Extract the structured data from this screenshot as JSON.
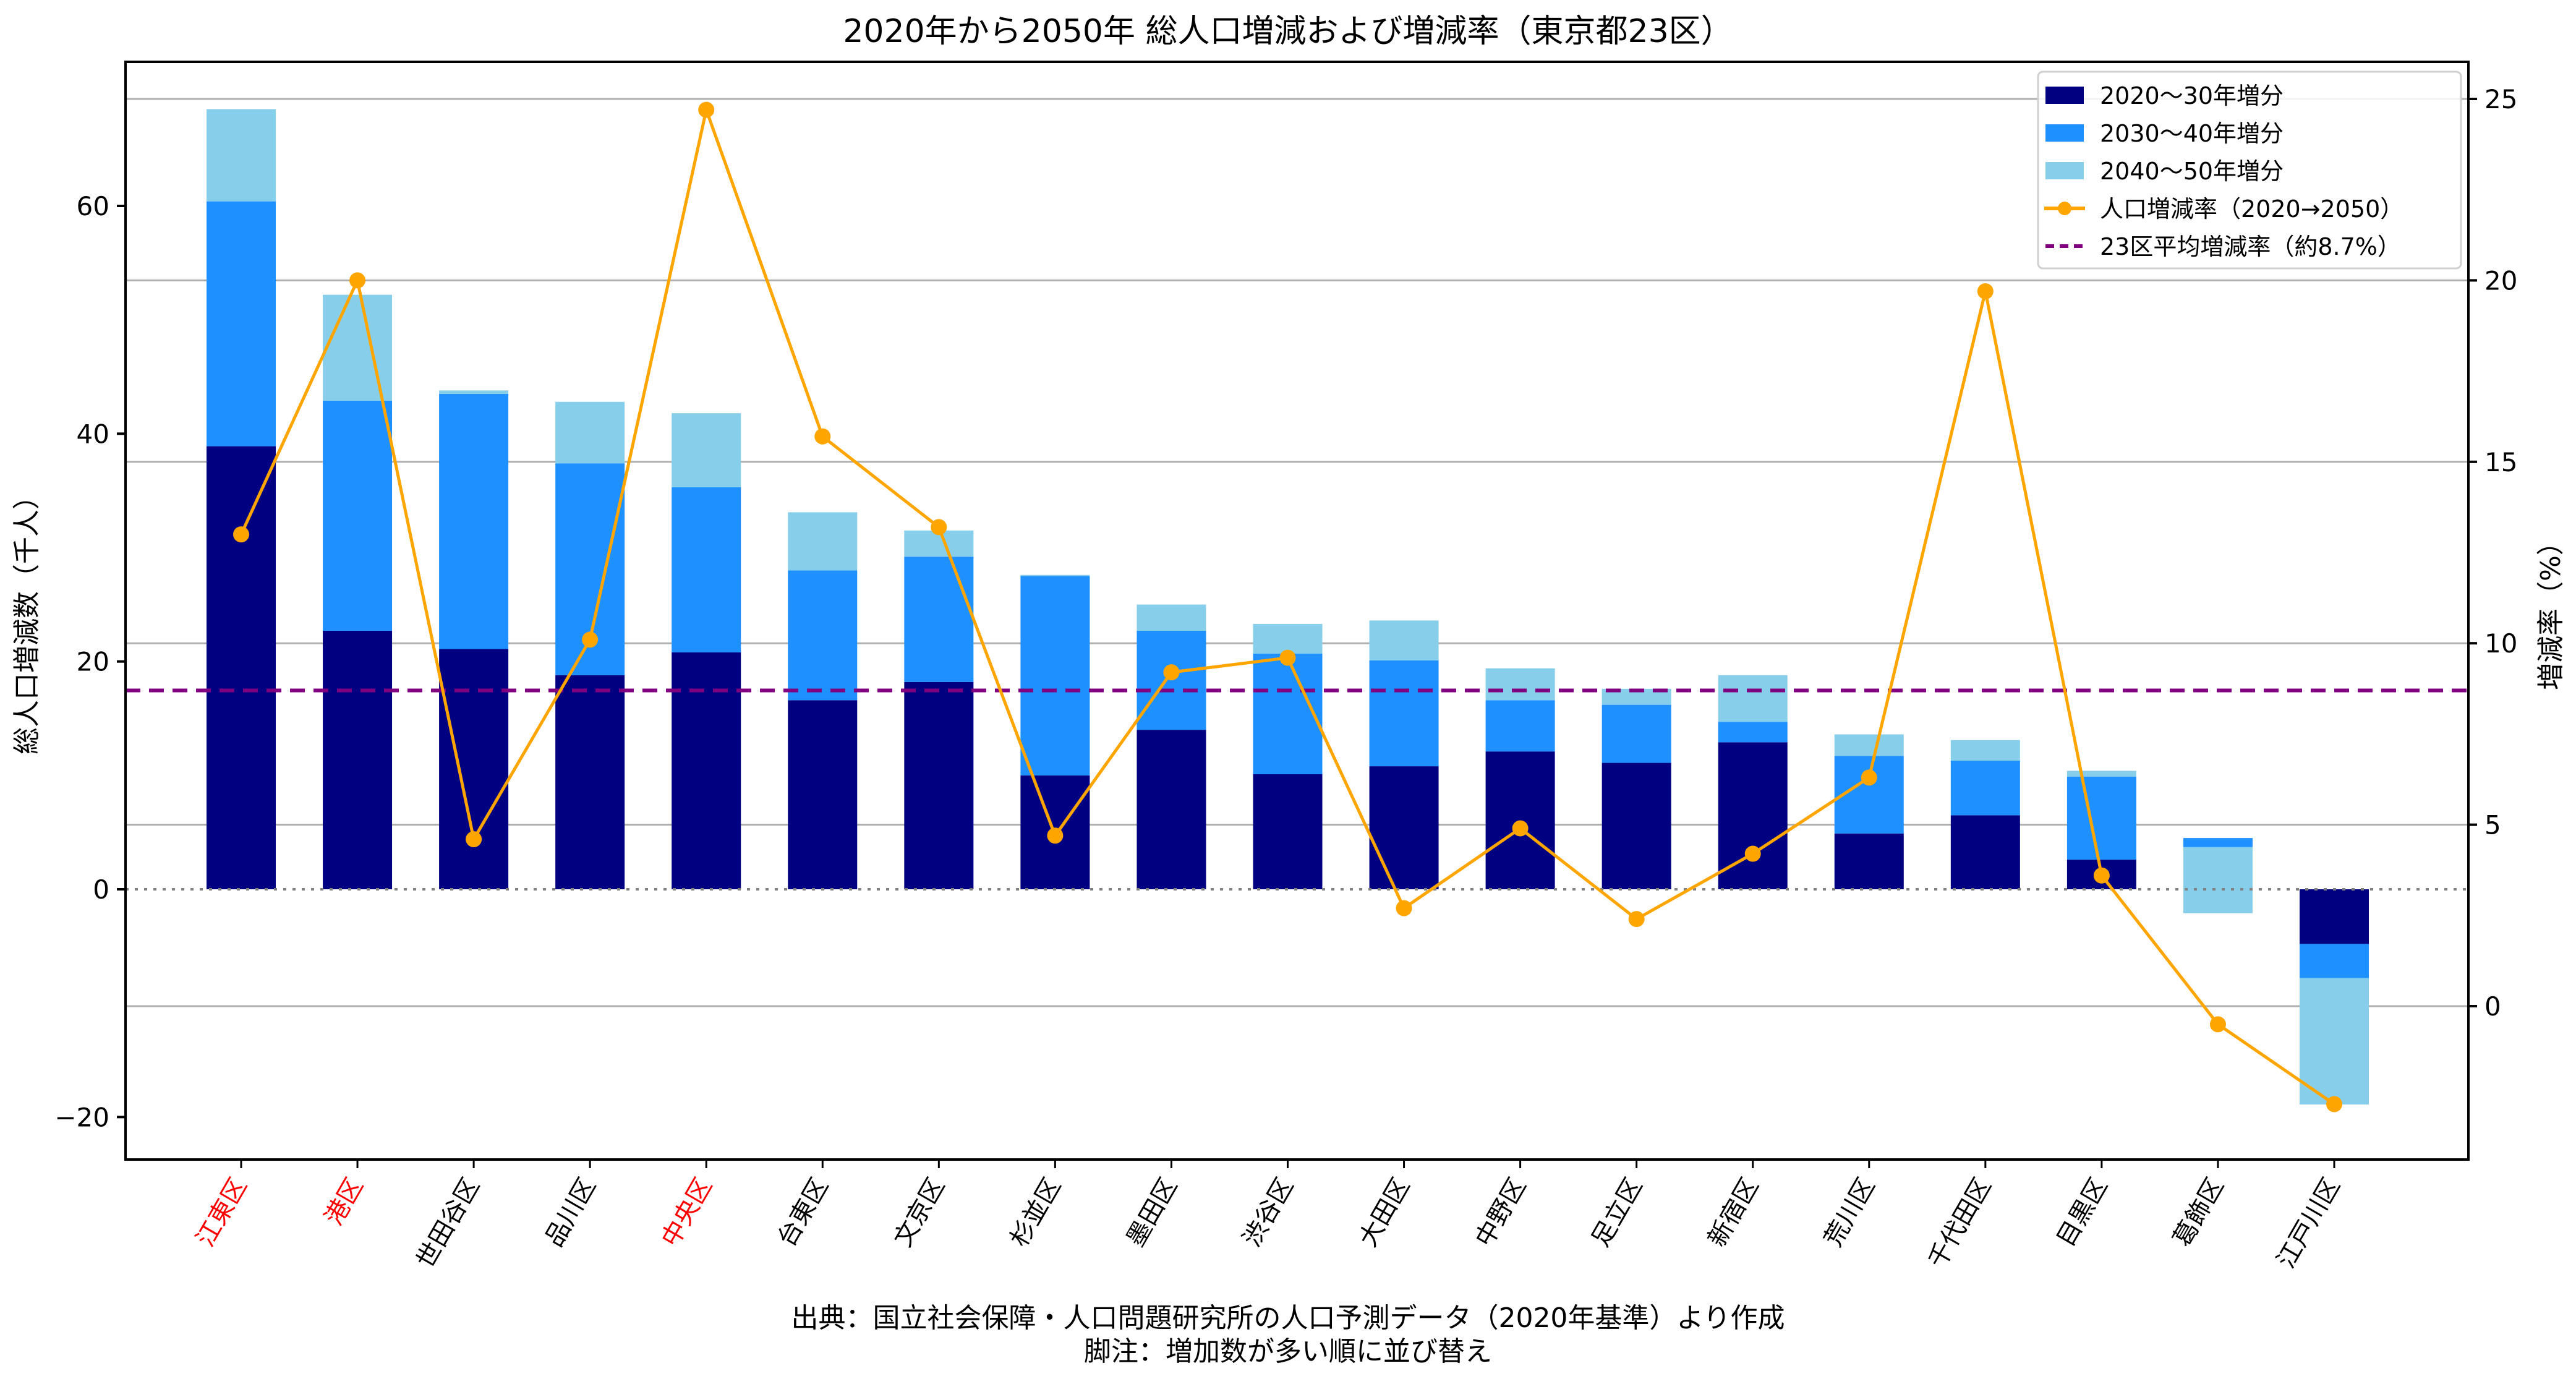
{
  "chart_data": {
    "type": "bar",
    "stacked": true,
    "title": "2020年から2050年 総人口増減および増減率（東京都23区）",
    "xlabel": "",
    "ylabel": "総人口増減数（千人）",
    "y2label": "増減率（%）",
    "ylim": [
      -23.5,
      72.5
    ],
    "y2lim": [
      -3.3,
      25.7
    ],
    "yticks": [
      -20,
      0,
      20,
      40,
      60
    ],
    "ytick_labels": [
      "−20",
      "0",
      "20",
      "40",
      "60"
    ],
    "y2ticks": [
      0,
      5,
      10,
      15,
      20,
      25
    ],
    "y2tick_labels": [
      "0",
      "5",
      "10",
      "15",
      "20",
      "25"
    ],
    "grid": true,
    "legend_position": "top-right",
    "categories": [
      "江東区",
      "港区",
      "世田谷区",
      "品川区",
      "中央区",
      "台東区",
      "文京区",
      "杉並区",
      "墨田区",
      "渋谷区",
      "大田区",
      "中野区",
      "足立区",
      "新宿区",
      "荒川区",
      "千代田区",
      "目黒区",
      "葛飾区",
      "江戸川区"
    ],
    "highlighted_categories": [
      "江東区",
      "港区",
      "中央区"
    ],
    "series": [
      {
        "name": "2020〜30年増分",
        "kind": "bar",
        "color": "#000080",
        "values": [
          38.9,
          22.7,
          21.1,
          18.8,
          20.8,
          16.6,
          18.2,
          10.0,
          14.0,
          10.1,
          10.8,
          12.1,
          11.1,
          12.9,
          4.9,
          6.5,
          2.6,
          0.0,
          -4.8
        ]
      },
      {
        "name": "2030〜40年増分",
        "kind": "bar",
        "color": "#1E90FF",
        "values": [
          21.5,
          20.2,
          22.4,
          18.6,
          14.5,
          11.4,
          11.0,
          17.5,
          8.7,
          10.6,
          9.3,
          4.5,
          5.1,
          1.8,
          6.8,
          4.8,
          7.3,
          4.5,
          -3.0
        ]
      },
      {
        "name": "2040〜50年増分",
        "kind": "bar",
        "color": "#87CEEB",
        "values": [
          8.1,
          9.3,
          0.3,
          5.4,
          6.5,
          5.1,
          2.3,
          0.1,
          2.3,
          2.6,
          3.5,
          2.8,
          1.4,
          4.1,
          1.9,
          1.8,
          0.5,
          -6.6,
          -11.1
        ]
      },
      {
        "name": "人口増減率（2020→2050）",
        "kind": "line",
        "axis": "right",
        "color": "#FFA500",
        "values": [
          13.0,
          20.0,
          4.6,
          10.1,
          24.7,
          15.7,
          13.2,
          4.7,
          9.2,
          9.6,
          2.7,
          4.9,
          2.4,
          4.2,
          6.3,
          19.7,
          3.6,
          -0.5,
          -2.7
        ]
      },
      {
        "name": "23区平均増減率（約8.7%）",
        "kind": "hline",
        "axis": "right",
        "color": "#800080",
        "value": 8.7
      }
    ],
    "zero_line": 0
  },
  "footer": {
    "source": "出典：国立社会保障・人口問題研究所の人口予測データ（2020年基準）より作成",
    "note": "脚注：増加数が多い順に並び替え"
  }
}
